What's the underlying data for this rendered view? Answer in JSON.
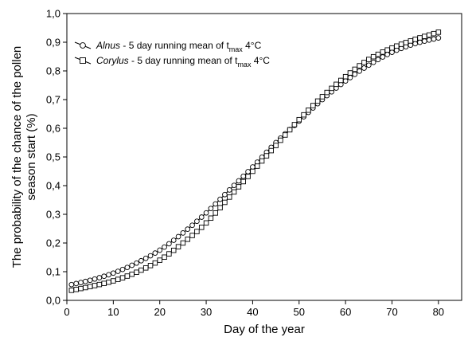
{
  "chart_data": {
    "type": "line",
    "title": "",
    "xlabel": "Day of the year",
    "ylabel_line1": "The probability of the chance of the pollen",
    "ylabel_line2": "season start (%)",
    "xlim": [
      0,
      85
    ],
    "ylim": [
      0,
      1
    ],
    "xticks": [
      "0",
      "10",
      "20",
      "30",
      "40",
      "50",
      "60",
      "70",
      "80"
    ],
    "yticks": [
      "0,0",
      "0,1",
      "0,2",
      "0,3",
      "0,4",
      "0,5",
      "0,6",
      "0,7",
      "0,8",
      "0,9",
      "1,0"
    ],
    "grid": false,
    "legend_position": "top-left",
    "x": [
      1,
      5,
      10,
      15,
      20,
      25,
      30,
      35,
      40,
      45,
      50,
      55,
      60,
      65,
      70,
      75,
      80
    ],
    "series": [
      {
        "name_italic": "Alnus",
        "name_rest": " - 5 day running mean of t",
        "name_sub": "max",
        "name_end": " 4°C",
        "marker": "circle",
        "values": [
          0.055,
          0.07,
          0.095,
          0.13,
          0.175,
          0.235,
          0.305,
          0.385,
          0.465,
          0.55,
          0.625,
          0.7,
          0.765,
          0.82,
          0.865,
          0.895,
          0.915
        ]
      },
      {
        "name_italic": "Corylus",
        "name_rest": " - 5 day running mean of t",
        "name_sub": "max",
        "name_end": " 4°C",
        "marker": "square",
        "values": [
          0.035,
          0.048,
          0.068,
          0.098,
          0.14,
          0.2,
          0.27,
          0.36,
          0.45,
          0.54,
          0.63,
          0.71,
          0.78,
          0.84,
          0.88,
          0.91,
          0.935
        ]
      }
    ]
  }
}
